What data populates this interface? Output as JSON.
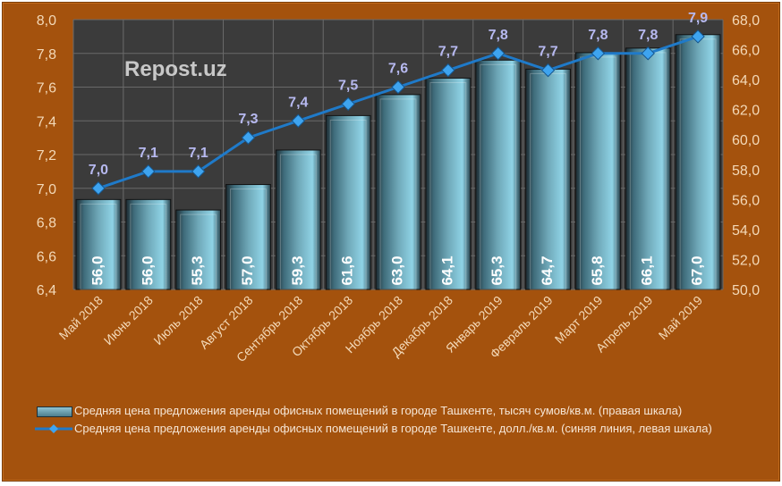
{
  "chart_data": {
    "type": "bar+line",
    "watermark": "Repost.uz",
    "categories": [
      "Май 2018",
      "Июнь 2018",
      "Июль 2018",
      "Август 2018",
      "Сентябрь 2018",
      "Октябрь 2018",
      "Ноябрь 2018",
      "Декабрь 2018",
      "Январь 2019",
      "Февраль 2019",
      "Март 2019",
      "Апрель 2019",
      "Май 2019"
    ],
    "series": [
      {
        "name": "Средняя цена предложения аренды офисных помещений в городе Ташкенте, тысяч сумов/кв.м. (правая шкала)",
        "type": "bar",
        "axis": "right",
        "values": [
          56.0,
          56.0,
          55.3,
          57.0,
          59.3,
          61.6,
          63.0,
          64.1,
          65.3,
          64.7,
          65.8,
          66.1,
          67.0
        ],
        "labels": [
          "56,0",
          "56,0",
          "55,3",
          "57,0",
          "59,3",
          "61,6",
          "63,0",
          "64,1",
          "65,3",
          "64,7",
          "65,8",
          "66,1",
          "67,0"
        ],
        "color": "#6fa8b8"
      },
      {
        "name": "Средняя цена предложения аренды офисных помещений в городе Ташкенте, долл./кв.м. (синяя линия, левая шкала)",
        "type": "line",
        "axis": "left",
        "values": [
          7.0,
          7.1,
          7.1,
          7.3,
          7.4,
          7.5,
          7.6,
          7.7,
          7.8,
          7.7,
          7.8,
          7.8,
          7.9
        ],
        "labels": [
          "7,0",
          "7,1",
          "7,1",
          "7,3",
          "7,4",
          "7,5",
          "7,6",
          "7,7",
          "7,8",
          "7,7",
          "7,8",
          "7,8",
          "7,9"
        ],
        "color": "#1f7ac9"
      }
    ],
    "left_axis": {
      "range": [
        6.4,
        8.0
      ],
      "ticks": [
        "6,4",
        "6,6",
        "6,8",
        "7,0",
        "7,2",
        "7,4",
        "7,6",
        "7,8",
        "8,0"
      ]
    },
    "right_axis": {
      "range": [
        50,
        68
      ],
      "ticks": [
        "50,0",
        "52,0",
        "54,0",
        "56,0",
        "58,0",
        "60,0",
        "62,0",
        "64,0",
        "66,0",
        "68,0"
      ]
    },
    "grid": true,
    "legend": "bottom",
    "colors": {
      "background": "#a4520d",
      "plot_area": "#3b3b3b",
      "axis_text": "#f3d9b8",
      "line_label": "#b7b9f0"
    }
  }
}
